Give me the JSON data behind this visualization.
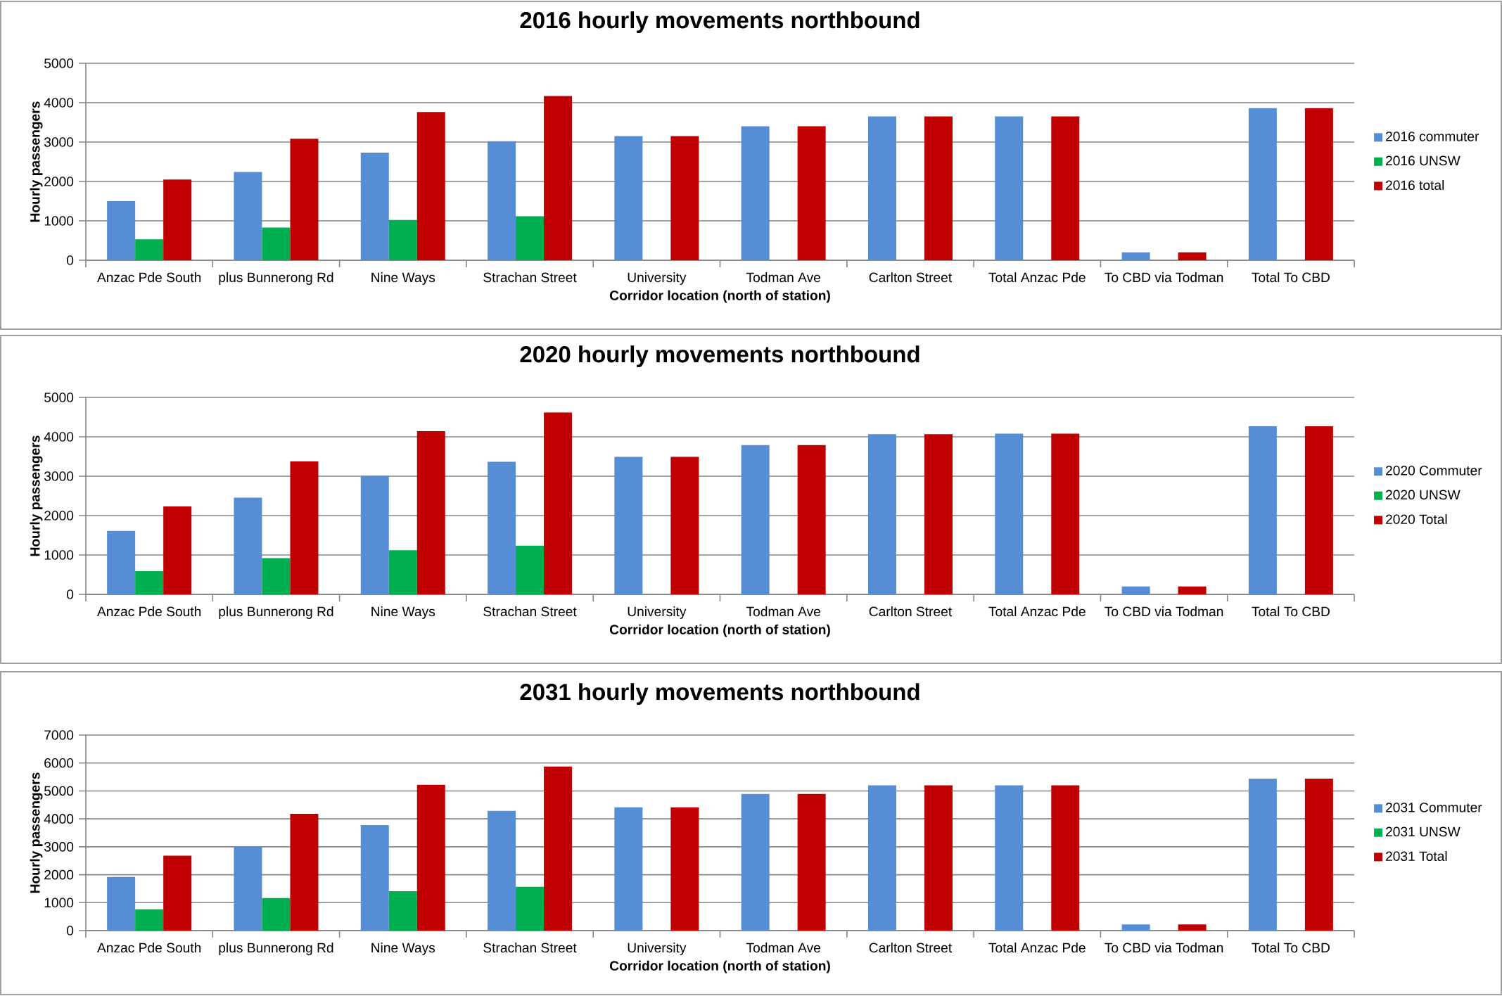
{
  "chart_data": [
    {
      "type": "bar",
      "title": "2016 hourly movements northbound",
      "xlabel": "Corridor location (north of station)",
      "ylabel": "Hourly passengers",
      "categories": [
        "Anzac Pde South",
        "plus Bunnerong Rd",
        "Nine Ways",
        "Strachan Street",
        "University",
        "Todman Ave",
        "Carlton Street",
        "Total Anzac Pde",
        "To CBD via Todman",
        "Total To CBD"
      ],
      "series": [
        {
          "name": "2016 commuter",
          "color": "#558ed5",
          "values": [
            1500,
            2240,
            2730,
            3020,
            3150,
            3400,
            3650,
            3650,
            200,
            3860
          ]
        },
        {
          "name": "2016 UNSW",
          "color": "#00b050",
          "values": [
            530,
            830,
            1020,
            1120,
            null,
            null,
            null,
            null,
            null,
            null
          ]
        },
        {
          "name": "2016 total",
          "color": "#c00000",
          "values": [
            2050,
            3085,
            3765,
            4170,
            3150,
            3400,
            3650,
            3650,
            200,
            3860
          ]
        }
      ],
      "ylim": [
        0,
        5000
      ],
      "yticks": [
        0,
        1000,
        2000,
        3000,
        4000,
        5000
      ],
      "grid": "y",
      "legend": "right"
    },
    {
      "type": "bar",
      "title": "2020 hourly movements northbound",
      "xlabel": "Corridor location (north of station)",
      "ylabel": "Hourly passengers",
      "categories": [
        "Anzac Pde South",
        "plus Bunnerong Rd",
        "Nine Ways",
        "Strachan Street",
        "University",
        "Todman Ave",
        "Carlton Street",
        "Total Anzac Pde",
        "To CBD via Todman",
        "Total To CBD"
      ],
      "series": [
        {
          "name": "2020 Commuter",
          "color": "#558ed5",
          "values": [
            1610,
            2455,
            3010,
            3365,
            3490,
            3790,
            4065,
            4080,
            200,
            4270
          ]
        },
        {
          "name": "2020 UNSW",
          "color": "#00b050",
          "values": [
            590,
            920,
            1120,
            1235,
            null,
            null,
            null,
            null,
            null,
            null
          ]
        },
        {
          "name": "2020 Total",
          "color": "#c00000",
          "values": [
            2230,
            3375,
            4145,
            4620,
            3490,
            3790,
            4065,
            4080,
            200,
            4270
          ]
        }
      ],
      "ylim": [
        0,
        5000
      ],
      "yticks": [
        0,
        1000,
        2000,
        3000,
        4000,
        5000
      ],
      "grid": "y",
      "legend": "right"
    },
    {
      "type": "bar",
      "title": "2031 hourly movements northbound",
      "xlabel": "Corridor location (north of station)",
      "ylabel": "Hourly passengers",
      "categories": [
        "Anzac Pde South",
        "plus Bunnerong Rd",
        "Nine Ways",
        "Strachan Street",
        "University",
        "Todman Ave",
        "Carlton Street",
        "Total Anzac Pde",
        "To CBD via Todman",
        "Total To CBD"
      ],
      "series": [
        {
          "name": "2031 Commuter",
          "color": "#558ed5",
          "values": [
            1920,
            3000,
            3775,
            4285,
            4410,
            4890,
            5200,
            5200,
            220,
            5440
          ]
        },
        {
          "name": "2031 UNSW",
          "color": "#00b050",
          "values": [
            760,
            1165,
            1410,
            1570,
            null,
            null,
            null,
            null,
            null,
            null
          ]
        },
        {
          "name": "2031 Total",
          "color": "#c00000",
          "values": [
            2680,
            4180,
            5220,
            5875,
            4410,
            4890,
            5200,
            5200,
            220,
            5440
          ]
        }
      ],
      "ylim": [
        0,
        7000
      ],
      "yticks": [
        0,
        1000,
        2000,
        3000,
        4000,
        5000,
        6000,
        7000
      ],
      "grid": "y",
      "legend": "right"
    }
  ]
}
